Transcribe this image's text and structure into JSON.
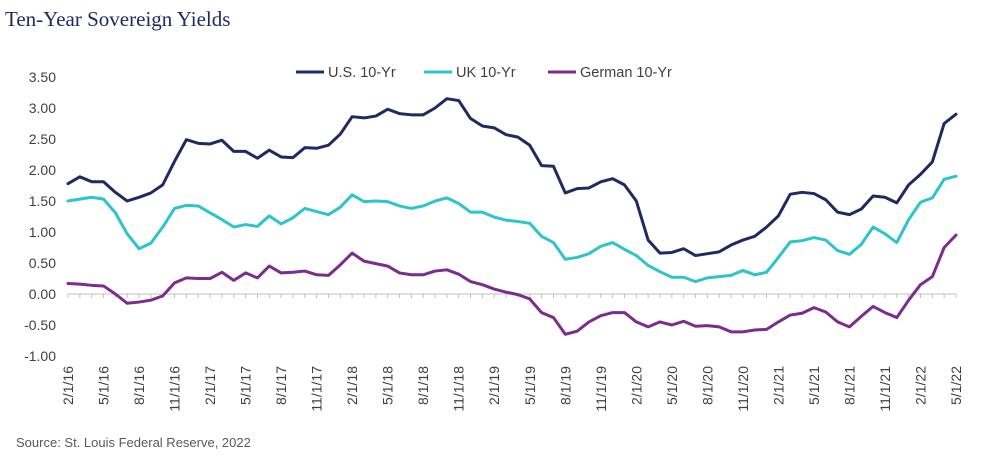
{
  "chart_data": {
    "type": "line",
    "title": "Ten-Year Sovereign Yields",
    "source": "Source: St. Louis Federal Reserve, 2022",
    "xlabel": "",
    "ylabel": "",
    "ylim": [
      -1.0,
      3.5
    ],
    "ytick_labels": [
      "3.50",
      "3.00",
      "2.50",
      "2.00",
      "1.50",
      "1.00",
      "0.50",
      "0.00",
      "-0.50",
      "-1.00"
    ],
    "ytick_values": [
      3.5,
      3.0,
      2.5,
      2.0,
      1.5,
      1.0,
      0.5,
      0.0,
      -0.5,
      -1.0
    ],
    "x": [
      "2/1/16",
      "3/1/16",
      "4/1/16",
      "5/1/16",
      "6/1/16",
      "7/1/16",
      "8/1/16",
      "9/1/16",
      "10/1/16",
      "11/1/16",
      "12/1/16",
      "1/1/17",
      "2/1/17",
      "3/1/17",
      "4/1/17",
      "5/1/17",
      "6/1/17",
      "7/1/17",
      "8/1/17",
      "9/1/17",
      "10/1/17",
      "11/1/17",
      "12/1/17",
      "1/1/18",
      "2/1/18",
      "3/1/18",
      "4/1/18",
      "5/1/18",
      "6/1/18",
      "7/1/18",
      "8/1/18",
      "9/1/18",
      "10/1/18",
      "11/1/18",
      "12/1/18",
      "1/1/19",
      "2/1/19",
      "3/1/19",
      "4/1/19",
      "5/1/19",
      "6/1/19",
      "7/1/19",
      "8/1/19",
      "9/1/19",
      "10/1/19",
      "11/1/19",
      "12/1/19",
      "1/1/20",
      "2/1/20",
      "3/1/20",
      "4/1/20",
      "5/1/20",
      "6/1/20",
      "7/1/20",
      "8/1/20",
      "9/1/20",
      "10/1/20",
      "11/1/20",
      "12/1/20",
      "1/1/21",
      "2/1/21",
      "3/1/21",
      "4/1/21",
      "5/1/21",
      "6/1/21",
      "7/1/21",
      "8/1/21",
      "9/1/21",
      "10/1/21",
      "11/1/21",
      "12/1/21",
      "1/1/22",
      "2/1/22",
      "3/1/22",
      "4/1/22",
      "5/1/22"
    ],
    "x_tick_labels": [
      "2/1/16",
      "5/1/16",
      "8/1/16",
      "11/1/16",
      "2/1/17",
      "5/1/17",
      "8/1/17",
      "11/1/17",
      "2/1/18",
      "5/1/18",
      "8/1/18",
      "11/1/18",
      "2/1/19",
      "5/1/19",
      "8/1/19",
      "11/1/19",
      "2/1/20",
      "5/1/20",
      "8/1/20",
      "11/1/20",
      "2/1/21",
      "5/1/21",
      "8/1/21",
      "11/1/21",
      "2/1/22",
      "5/1/22"
    ],
    "legend_position": "top",
    "grid": false,
    "series": [
      {
        "name": "U.S. 10-Yr",
        "color": "#1f2a63",
        "values": [
          1.78,
          1.89,
          1.81,
          1.81,
          1.64,
          1.5,
          1.56,
          1.63,
          1.76,
          2.14,
          2.49,
          2.43,
          2.42,
          2.48,
          2.3,
          2.3,
          2.19,
          2.32,
          2.21,
          2.2,
          2.36,
          2.35,
          2.4,
          2.58,
          2.86,
          2.84,
          2.87,
          2.98,
          2.91,
          2.89,
          2.89,
          3.0,
          3.15,
          3.12,
          2.83,
          2.71,
          2.68,
          2.57,
          2.53,
          2.4,
          2.07,
          2.06,
          1.63,
          1.7,
          1.71,
          1.81,
          1.86,
          1.76,
          1.5,
          0.87,
          0.66,
          0.67,
          0.73,
          0.62,
          0.65,
          0.68,
          0.79,
          0.87,
          0.93,
          1.08,
          1.26,
          1.61,
          1.64,
          1.62,
          1.52,
          1.32,
          1.28,
          1.37,
          1.58,
          1.56,
          1.47,
          1.76,
          1.93,
          2.13,
          2.75,
          2.9
        ]
      },
      {
        "name": "UK 10-Yr",
        "color": "#2ec4cc",
        "values": [
          1.5,
          1.53,
          1.56,
          1.53,
          1.31,
          0.97,
          0.73,
          0.82,
          1.08,
          1.38,
          1.43,
          1.42,
          1.31,
          1.2,
          1.08,
          1.12,
          1.09,
          1.26,
          1.13,
          1.23,
          1.38,
          1.33,
          1.28,
          1.4,
          1.6,
          1.49,
          1.5,
          1.49,
          1.42,
          1.38,
          1.42,
          1.5,
          1.55,
          1.46,
          1.32,
          1.32,
          1.24,
          1.19,
          1.17,
          1.14,
          0.93,
          0.83,
          0.56,
          0.59,
          0.65,
          0.77,
          0.83,
          0.72,
          0.62,
          0.46,
          0.36,
          0.27,
          0.27,
          0.2,
          0.26,
          0.28,
          0.3,
          0.38,
          0.31,
          0.35,
          0.59,
          0.84,
          0.86,
          0.91,
          0.87,
          0.7,
          0.64,
          0.8,
          1.08,
          0.97,
          0.83,
          1.2,
          1.48,
          1.55,
          1.85,
          1.9
        ]
      },
      {
        "name": "German 10-Yr",
        "color": "#7b2c8f",
        "values": [
          0.17,
          0.16,
          0.14,
          0.13,
          0.0,
          -0.15,
          -0.13,
          -0.1,
          -0.03,
          0.18,
          0.26,
          0.25,
          0.25,
          0.35,
          0.22,
          0.34,
          0.26,
          0.45,
          0.34,
          0.35,
          0.37,
          0.31,
          0.3,
          0.47,
          0.66,
          0.53,
          0.49,
          0.45,
          0.34,
          0.31,
          0.31,
          0.37,
          0.39,
          0.32,
          0.2,
          0.15,
          0.08,
          0.03,
          -0.01,
          -0.08,
          -0.3,
          -0.38,
          -0.65,
          -0.6,
          -0.45,
          -0.35,
          -0.3,
          -0.3,
          -0.45,
          -0.53,
          -0.45,
          -0.5,
          -0.44,
          -0.52,
          -0.51,
          -0.53,
          -0.61,
          -0.61,
          -0.58,
          -0.57,
          -0.45,
          -0.34,
          -0.31,
          -0.22,
          -0.29,
          -0.45,
          -0.53,
          -0.36,
          -0.2,
          -0.3,
          -0.38,
          -0.1,
          0.15,
          0.28,
          0.75,
          0.95
        ]
      }
    ]
  }
}
